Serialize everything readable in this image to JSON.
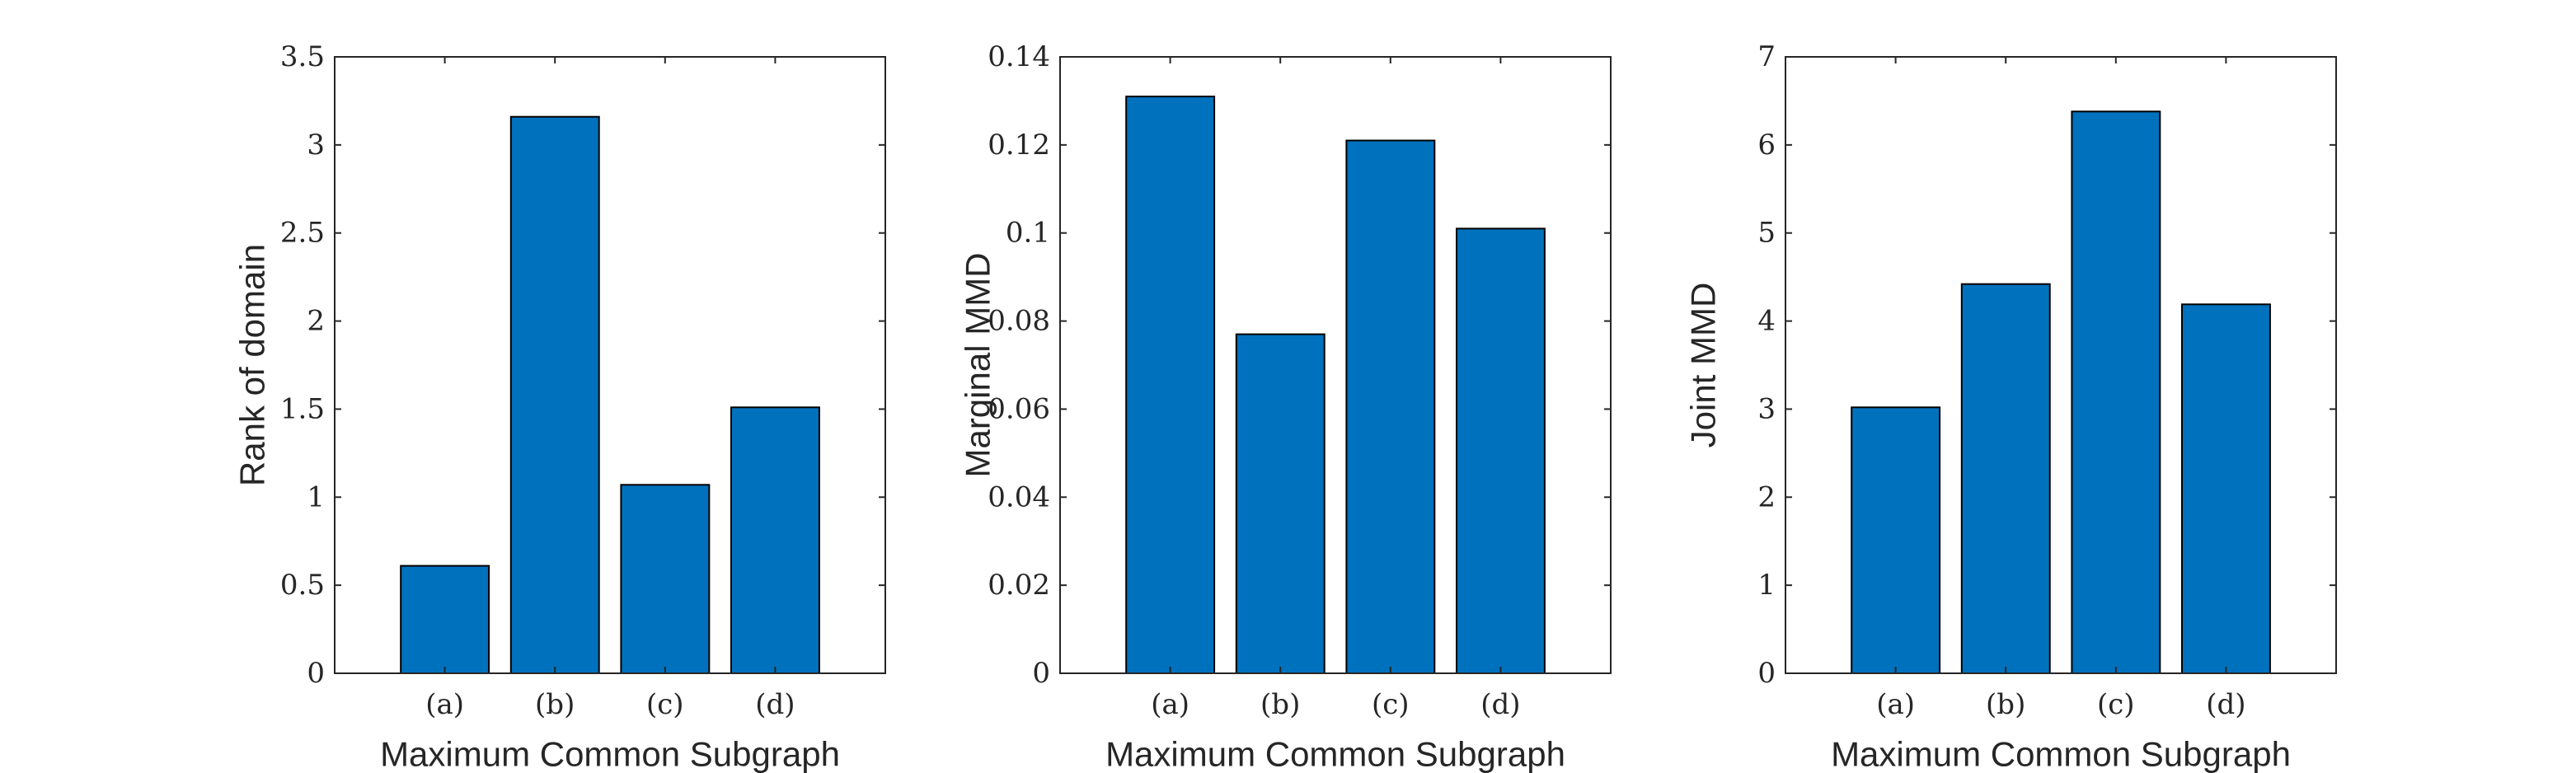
{
  "chart_data": [
    {
      "type": "bar",
      "title": "",
      "categories": [
        "(a)",
        "(b)",
        "(c)",
        "(d)"
      ],
      "values": [
        0.61,
        3.16,
        1.07,
        1.51
      ],
      "xlabel": "Maximum Common Subgraph",
      "ylabel": "Rank of domain",
      "ylim": [
        0,
        3.5
      ],
      "yticks": [
        0,
        0.5,
        1,
        1.5,
        2,
        2.5,
        3,
        3.5
      ],
      "ytick_labels": [
        "0",
        "0.5",
        "1",
        "1.5",
        "2",
        "2.5",
        "3",
        "3.5"
      ],
      "xlim": [
        0,
        5
      ],
      "grid": false,
      "bar_color": "#0072BD"
    },
    {
      "type": "bar",
      "title": "",
      "categories": [
        "(a)",
        "(b)",
        "(c)",
        "(d)"
      ],
      "values": [
        0.131,
        0.077,
        0.121,
        0.101
      ],
      "xlabel": "Maximum Common Subgraph",
      "ylabel": "Marginal MMD",
      "ylim": [
        0,
        0.14
      ],
      "yticks": [
        0,
        0.02,
        0.04,
        0.06,
        0.08,
        0.1,
        0.12,
        0.14
      ],
      "ytick_labels": [
        "0",
        "0.02",
        "0.04",
        "0.06",
        "0.08",
        "0.1",
        "0.12",
        "0.14"
      ],
      "xlim": [
        0,
        5
      ],
      "grid": false,
      "bar_color": "#0072BD"
    },
    {
      "type": "bar",
      "title": "",
      "categories": [
        "(a)",
        "(b)",
        "(c)",
        "(d)"
      ],
      "values": [
        3.02,
        4.42,
        6.38,
        4.19
      ],
      "xlabel": "Maximum Common Subgraph",
      "ylabel": "Joint MMD",
      "ylim": [
        0,
        7
      ],
      "yticks": [
        0,
        1,
        2,
        3,
        4,
        5,
        6,
        7
      ],
      "ytick_labels": [
        "0",
        "1",
        "2",
        "3",
        "4",
        "5",
        "6",
        "7"
      ],
      "xlim": [
        0,
        5
      ],
      "grid": false,
      "bar_color": "#0072BD"
    }
  ]
}
